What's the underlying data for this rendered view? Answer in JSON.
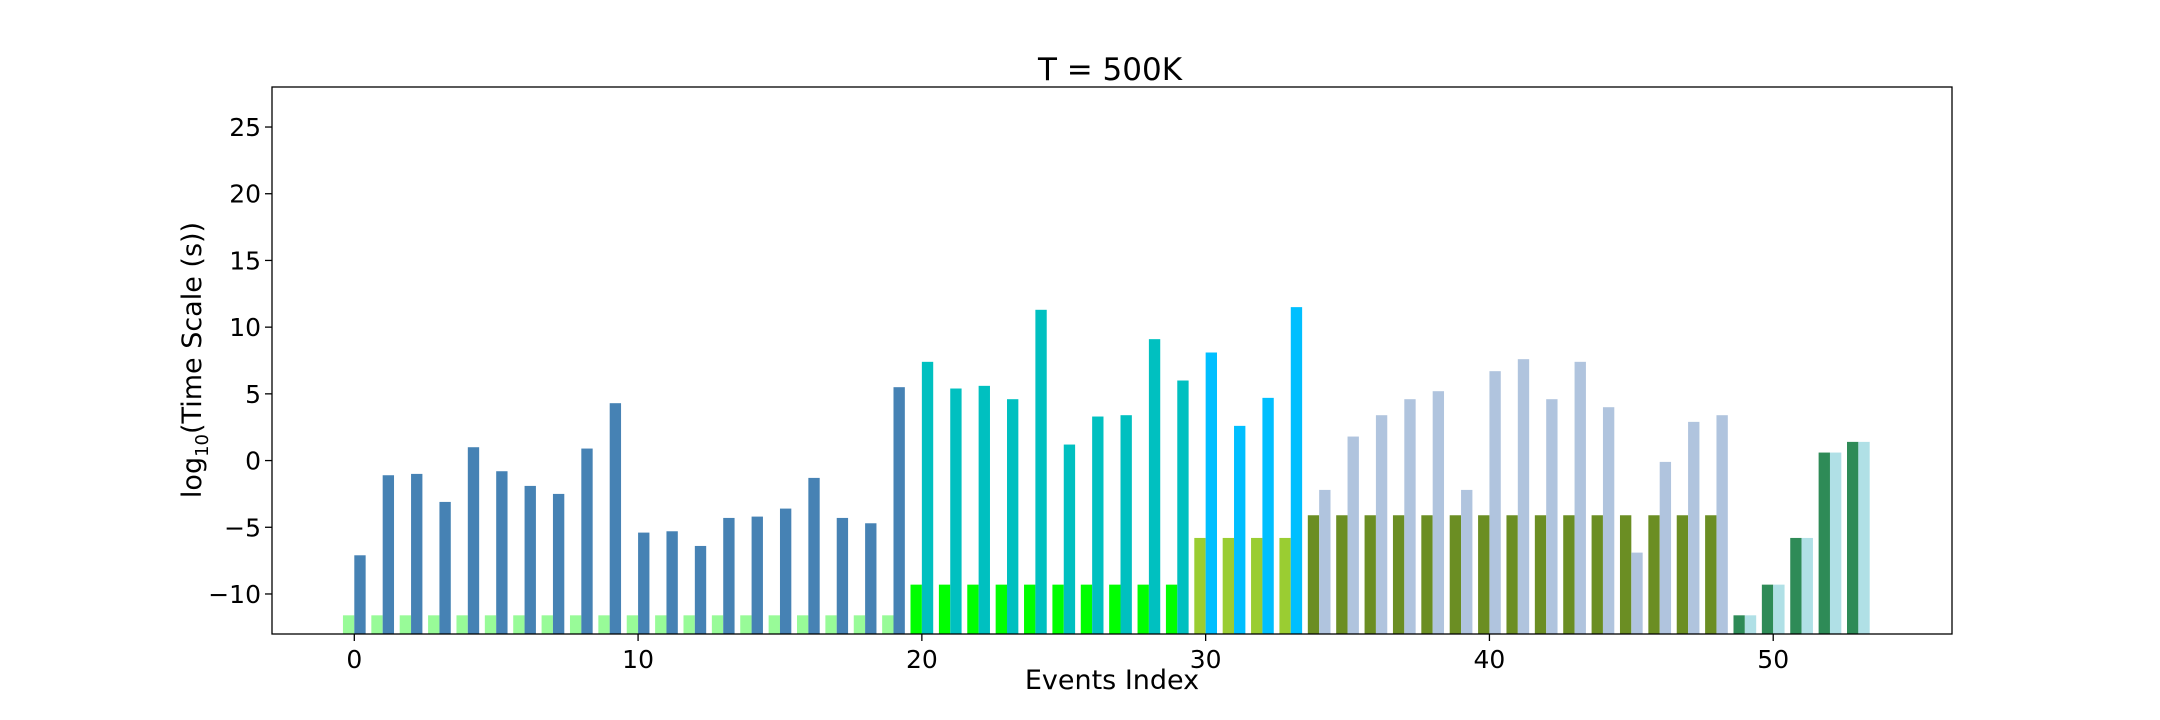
{
  "chart_data": {
    "type": "bar",
    "title": "T = 500K",
    "xlabel": "Events Index",
    "ylabel_text": "log",
    "ylabel_sub": "10",
    "ylabel_rest": "(Time Scale (s))",
    "xlim": [
      -2.9,
      56.3
    ],
    "ylim": [
      -13,
      28
    ],
    "xticks": [
      0,
      10,
      20,
      30,
      40,
      50
    ],
    "yticks": [
      -10,
      -5,
      0,
      5,
      10,
      15,
      20,
      25
    ],
    "xtick_labels": [
      "0",
      "10",
      "20",
      "30",
      "40",
      "50"
    ],
    "ytick_labels": [
      "−10",
      "−5",
      "0",
      "5",
      "10",
      "15",
      "20",
      "25"
    ],
    "bar_width": 0.4,
    "series": [
      {
        "values": [
          -11.6,
          -11.6,
          -11.6,
          -11.6,
          -11.6,
          -11.6,
          -11.6,
          -11.6,
          -11.6,
          -11.6,
          -11.6,
          -11.6,
          -11.6,
          -11.6,
          -11.6,
          -11.6,
          -11.6,
          -11.6,
          -11.6,
          -11.6,
          -9.3,
          -9.3,
          -9.3,
          -9.3,
          -9.3,
          -9.3,
          -9.3,
          -9.3,
          -9.3,
          -9.3,
          -5.8,
          -5.8,
          -5.8,
          -5.8,
          -4.1,
          -4.1,
          -4.1,
          -4.1,
          -4.1,
          -4.1,
          -4.1,
          -4.1,
          -4.1,
          -4.1,
          -4.1,
          -4.1,
          -4.1,
          -4.1,
          -4.1,
          -11.6,
          -9.3,
          -5.8,
          0.6,
          1.4
        ],
        "colors": [
          "#98fb98",
          "#98fb98",
          "#98fb98",
          "#98fb98",
          "#98fb98",
          "#98fb98",
          "#98fb98",
          "#98fb98",
          "#98fb98",
          "#98fb98",
          "#98fb98",
          "#98fb98",
          "#98fb98",
          "#98fb98",
          "#98fb98",
          "#98fb98",
          "#98fb98",
          "#98fb98",
          "#98fb98",
          "#98fb98",
          "#00ff00",
          "#00ff00",
          "#00ff00",
          "#00ff00",
          "#00ff00",
          "#00ff00",
          "#00ff00",
          "#00ff00",
          "#00ff00",
          "#00ff00",
          "#9acd32",
          "#9acd32",
          "#9acd32",
          "#9acd32",
          "#6b8e23",
          "#6b8e23",
          "#6b8e23",
          "#6b8e23",
          "#6b8e23",
          "#6b8e23",
          "#6b8e23",
          "#6b8e23",
          "#6b8e23",
          "#6b8e23",
          "#6b8e23",
          "#6b8e23",
          "#6b8e23",
          "#6b8e23",
          "#6b8e23",
          "#2e8b57",
          "#2e8b57",
          "#2e8b57",
          "#2e8b57",
          "#2e8b57"
        ]
      },
      {
        "values": [
          -7.1,
          -1.1,
          -1.0,
          -3.1,
          1.0,
          -0.8,
          -1.9,
          -2.5,
          0.9,
          4.3,
          -5.4,
          -5.3,
          -6.4,
          -4.3,
          -4.2,
          -3.6,
          -1.3,
          -4.3,
          -4.7,
          5.5,
          7.4,
          5.4,
          5.6,
          4.6,
          11.3,
          1.2,
          3.3,
          3.4,
          9.1,
          6.0,
          8.1,
          2.6,
          4.7,
          11.5,
          -2.2,
          1.8,
          3.4,
          4.6,
          5.2,
          -2.2,
          6.7,
          7.6,
          4.6,
          7.4,
          4.0,
          -6.9,
          -0.1,
          2.9,
          3.4,
          -11.6,
          -9.3,
          -5.8,
          0.6,
          1.4
        ],
        "colors": [
          "#4682b4",
          "#4682b4",
          "#4682b4",
          "#4682b4",
          "#4682b4",
          "#4682b4",
          "#4682b4",
          "#4682b4",
          "#4682b4",
          "#4682b4",
          "#4682b4",
          "#4682b4",
          "#4682b4",
          "#4682b4",
          "#4682b4",
          "#4682b4",
          "#4682b4",
          "#4682b4",
          "#4682b4",
          "#4682b4",
          "#00c0c0",
          "#00c0c0",
          "#00c0c0",
          "#00c0c0",
          "#00c0c0",
          "#00c0c0",
          "#00c0c0",
          "#00c0c0",
          "#00c0c0",
          "#00c0c0",
          "#00bfff",
          "#00bfff",
          "#00bfff",
          "#00bfff",
          "#b0c4de",
          "#b0c4de",
          "#b0c4de",
          "#b0c4de",
          "#b0c4de",
          "#b0c4de",
          "#b0c4de",
          "#b0c4de",
          "#b0c4de",
          "#b0c4de",
          "#b0c4de",
          "#b0c4de",
          "#b0c4de",
          "#b0c4de",
          "#b0c4de",
          "#b0e0e6",
          "#b0e0e6",
          "#b0e0e6",
          "#b0e0e6",
          "#b0e0e6"
        ]
      }
    ],
    "grid": false,
    "legend": "none"
  }
}
